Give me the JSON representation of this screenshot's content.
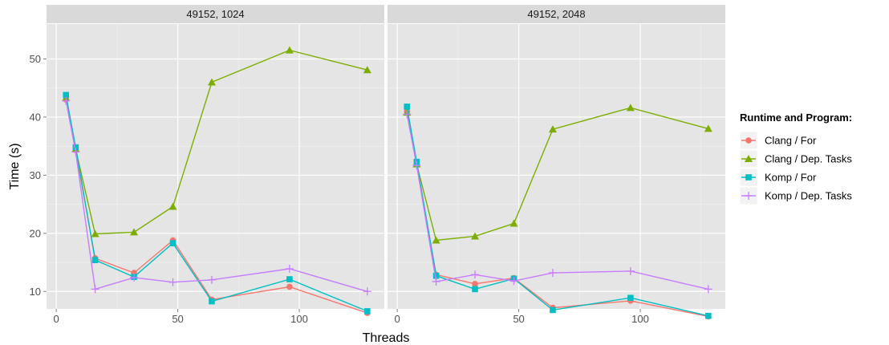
{
  "chart_data": {
    "type": "line",
    "xlabel": "Threads",
    "ylabel": "Time (s)",
    "xlim": [
      -4,
      135
    ],
    "ylim": [
      7,
      56
    ],
    "x_ticks": [
      0,
      50,
      100
    ],
    "y_ticks": [
      10,
      20,
      30,
      40,
      50
    ],
    "grid": true,
    "legend": {
      "title": "Runtime and Program:",
      "position": "right"
    },
    "colors": {
      "Clang / For": "#F8766D",
      "Clang / Dep. Tasks": "#7CAE00",
      "Komp / For": "#00BFC4",
      "Komp / Dep. Tasks": "#C77CFF"
    },
    "shapes": {
      "Clang / For": "circle",
      "Clang / Dep. Tasks": "triangle",
      "Komp / For": "square",
      "Komp / Dep. Tasks": "plus"
    },
    "series_names": [
      "Clang / For",
      "Clang / Dep. Tasks",
      "Komp / For",
      "Komp / Dep. Tasks"
    ],
    "x": [
      4,
      8,
      16,
      32,
      48,
      64,
      96,
      128
    ],
    "panels": [
      {
        "label": "49152, 1024",
        "series": [
          {
            "name": "Clang / For",
            "values": [
              43.0,
              34.3,
              15.7,
              13.2,
              18.8,
              8.6,
              10.8,
              6.3
            ]
          },
          {
            "name": "Clang / Dep. Tasks",
            "values": [
              43.3,
              34.5,
              19.9,
              20.2,
              24.6,
              46.0,
              51.5,
              48.1
            ]
          },
          {
            "name": "Komp / For",
            "values": [
              43.8,
              34.8,
              15.4,
              12.5,
              18.3,
              8.3,
              12.1,
              6.6
            ]
          },
          {
            "name": "Komp / Dep. Tasks",
            "values": [
              42.8,
              34.0,
              10.4,
              12.4,
              11.6,
              12.0,
              13.9,
              10.0
            ]
          }
        ]
      },
      {
        "label": "49152, 2048",
        "series": [
          {
            "name": "Clang / For",
            "values": [
              41.0,
              32.0,
              12.9,
              11.3,
              12.3,
              7.2,
              8.4,
              5.7
            ]
          },
          {
            "name": "Clang / Dep. Tasks",
            "values": [
              40.8,
              31.9,
              18.8,
              19.5,
              21.7,
              37.9,
              41.6,
              38.0
            ]
          },
          {
            "name": "Komp / For",
            "values": [
              41.8,
              32.3,
              12.7,
              10.4,
              12.2,
              6.8,
              8.9,
              5.8
            ]
          },
          {
            "name": "Komp / Dep. Tasks",
            "values": [
              40.5,
              31.7,
              11.7,
              12.9,
              11.8,
              13.2,
              13.5,
              10.4
            ]
          }
        ]
      }
    ]
  }
}
